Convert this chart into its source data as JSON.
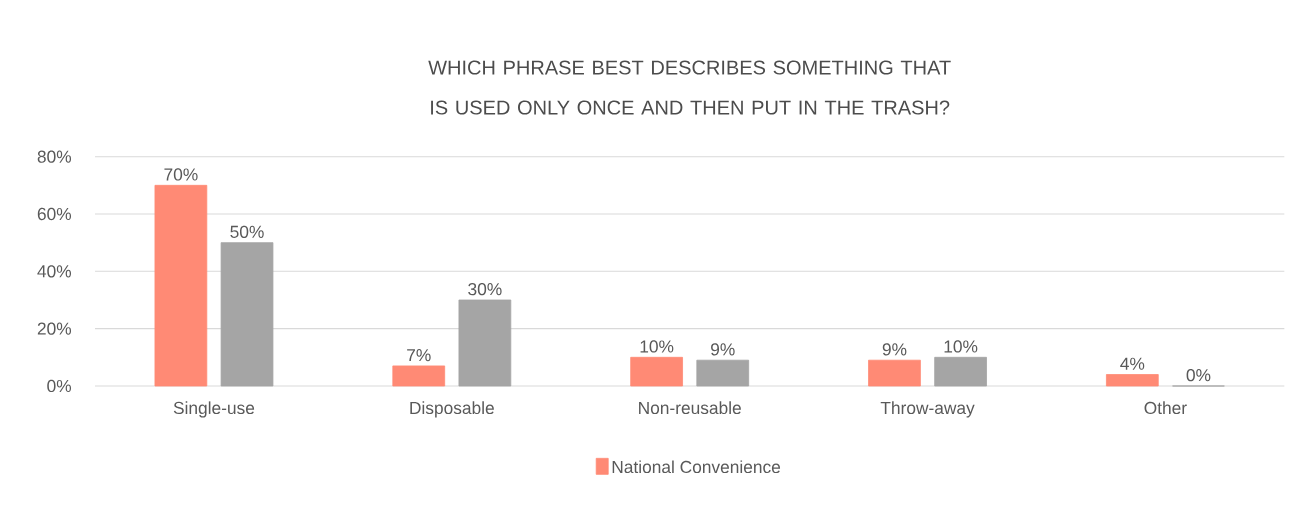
{
  "chart_data": {
    "type": "bar",
    "title": "WHICH PHRASE BEST DESCRIBES  SOMETHING THAT IS USED ONLY ONCE AND THEN PUT IN THE TRASH?",
    "categories": [
      "Single-use",
      "Disposable",
      "Non-reusable",
      "Throw-away",
      "Other"
    ],
    "series": [
      {
        "name": "National Convenience",
        "color": "#ff8a75",
        "values": [
          70,
          7,
          10,
          9,
          4
        ],
        "value_labels": [
          "70%",
          "7%",
          "10%",
          "9%",
          "4%"
        ]
      },
      {
        "color": "#a5a5a5",
        "values": [
          50,
          30,
          9,
          10,
          0
        ],
        "value_labels": [
          "50%",
          "30%",
          "9%",
          "10%",
          "0%"
        ]
      }
    ],
    "ylim": [
      0,
      80
    ],
    "yticks": [
      {
        "value": 0,
        "label": "0%"
      },
      {
        "value": 20,
        "label": "20%"
      },
      {
        "value": 40,
        "label": "40%"
      },
      {
        "value": 60,
        "label": "60%"
      },
      {
        "value": 80,
        "label": "80%"
      }
    ],
    "grid": "y",
    "legend": "bottom"
  }
}
